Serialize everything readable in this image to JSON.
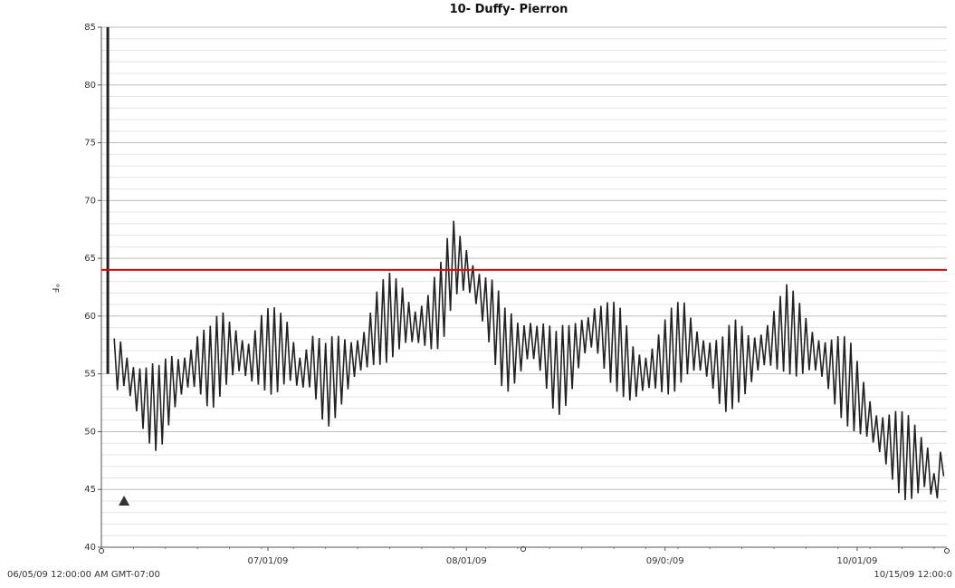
{
  "chart_data": {
    "type": "line",
    "title": "10- Duffy- Pierron",
    "ylabel": "°F",
    "xlabel": "",
    "ylim": [
      40,
      85
    ],
    "y_ticks": [
      40,
      45,
      50,
      55,
      60,
      65,
      70,
      75,
      80,
      85
    ],
    "y_tick_labels": [
      "40",
      "45",
      "50",
      "55",
      "60",
      "65",
      "70",
      "75",
      "80",
      "85"
    ],
    "x_range_days": [
      "2009-06-05",
      "2009-10-15"
    ],
    "x_ticks": [
      {
        "date": "2009-07-01",
        "label": "07/01/09"
      },
      {
        "date": "2009-08-01",
        "label": "08/01/09"
      },
      {
        "date": "2009-09-01",
        "label": "09/0:/09"
      },
      {
        "date": "2009-10-01",
        "label": "10/01/09"
      }
    ],
    "x_start_label": "06/05/09 12:00:00 AM GMT-07:00",
    "x_end_label": "10/15/09 12:00:0",
    "grid": true,
    "threshold": {
      "value": 64,
      "color": "#e00000"
    },
    "series": [
      {
        "name": "",
        "color": "#222222",
        "x": [
          "2009-06-07",
          "2009-06-08",
          "2009-06-10",
          "2009-06-12",
          "2009-06-14",
          "2009-06-16",
          "2009-06-18",
          "2009-06-20",
          "2009-06-22",
          "2009-06-24",
          "2009-06-26",
          "2009-06-28",
          "2009-06-30",
          "2009-07-02",
          "2009-07-04",
          "2009-07-06",
          "2009-07-08",
          "2009-07-10",
          "2009-07-12",
          "2009-07-14",
          "2009-07-16",
          "2009-07-18",
          "2009-07-20",
          "2009-07-22",
          "2009-07-24",
          "2009-07-26",
          "2009-07-28",
          "2009-07-29",
          "2009-07-30",
          "2009-08-01",
          "2009-08-03",
          "2009-08-05",
          "2009-08-07",
          "2009-08-09",
          "2009-08-11",
          "2009-08-13",
          "2009-08-15",
          "2009-08-17",
          "2009-08-19",
          "2009-08-21",
          "2009-08-23",
          "2009-08-25",
          "2009-08-27",
          "2009-08-29",
          "2009-08-31",
          "2009-09-02",
          "2009-09-04",
          "2009-09-06",
          "2009-09-08",
          "2009-09-10",
          "2009-09-12",
          "2009-09-14",
          "2009-09-16",
          "2009-09-18",
          "2009-09-20",
          "2009-09-22",
          "2009-09-24",
          "2009-09-26",
          "2009-09-28",
          "2009-09-30",
          "2009-10-02",
          "2009-10-04",
          "2009-10-06",
          "2009-10-08",
          "2009-10-10",
          "2009-10-12",
          "2009-10-13",
          "2009-10-14",
          "2009-10-15"
        ],
        "y": [
          55.5,
          56,
          54,
          52.5,
          52,
          54,
          55,
          56,
          55.5,
          57,
          57,
          56,
          57,
          57,
          57,
          55,
          56,
          54,
          55,
          56,
          57,
          59,
          60,
          60,
          59,
          59.5,
          61,
          63,
          65,
          64,
          62,
          60,
          57,
          57,
          58,
          57,
          55,
          56,
          58,
          59,
          58,
          57,
          55,
          55,
          56,
          57,
          58,
          57,
          56,
          55,
          56,
          56,
          57,
          58,
          59,
          58,
          57,
          56,
          55,
          54,
          52,
          50,
          49,
          48,
          47.5,
          47,
          45,
          46.5,
          50
        ]
      }
    ],
    "initial_spike": {
      "x": "2009-06-06",
      "y_max": 85,
      "y_min": 55
    },
    "marker": {
      "symbol": "triangle",
      "x": "2009-06-06",
      "y": 44
    }
  }
}
